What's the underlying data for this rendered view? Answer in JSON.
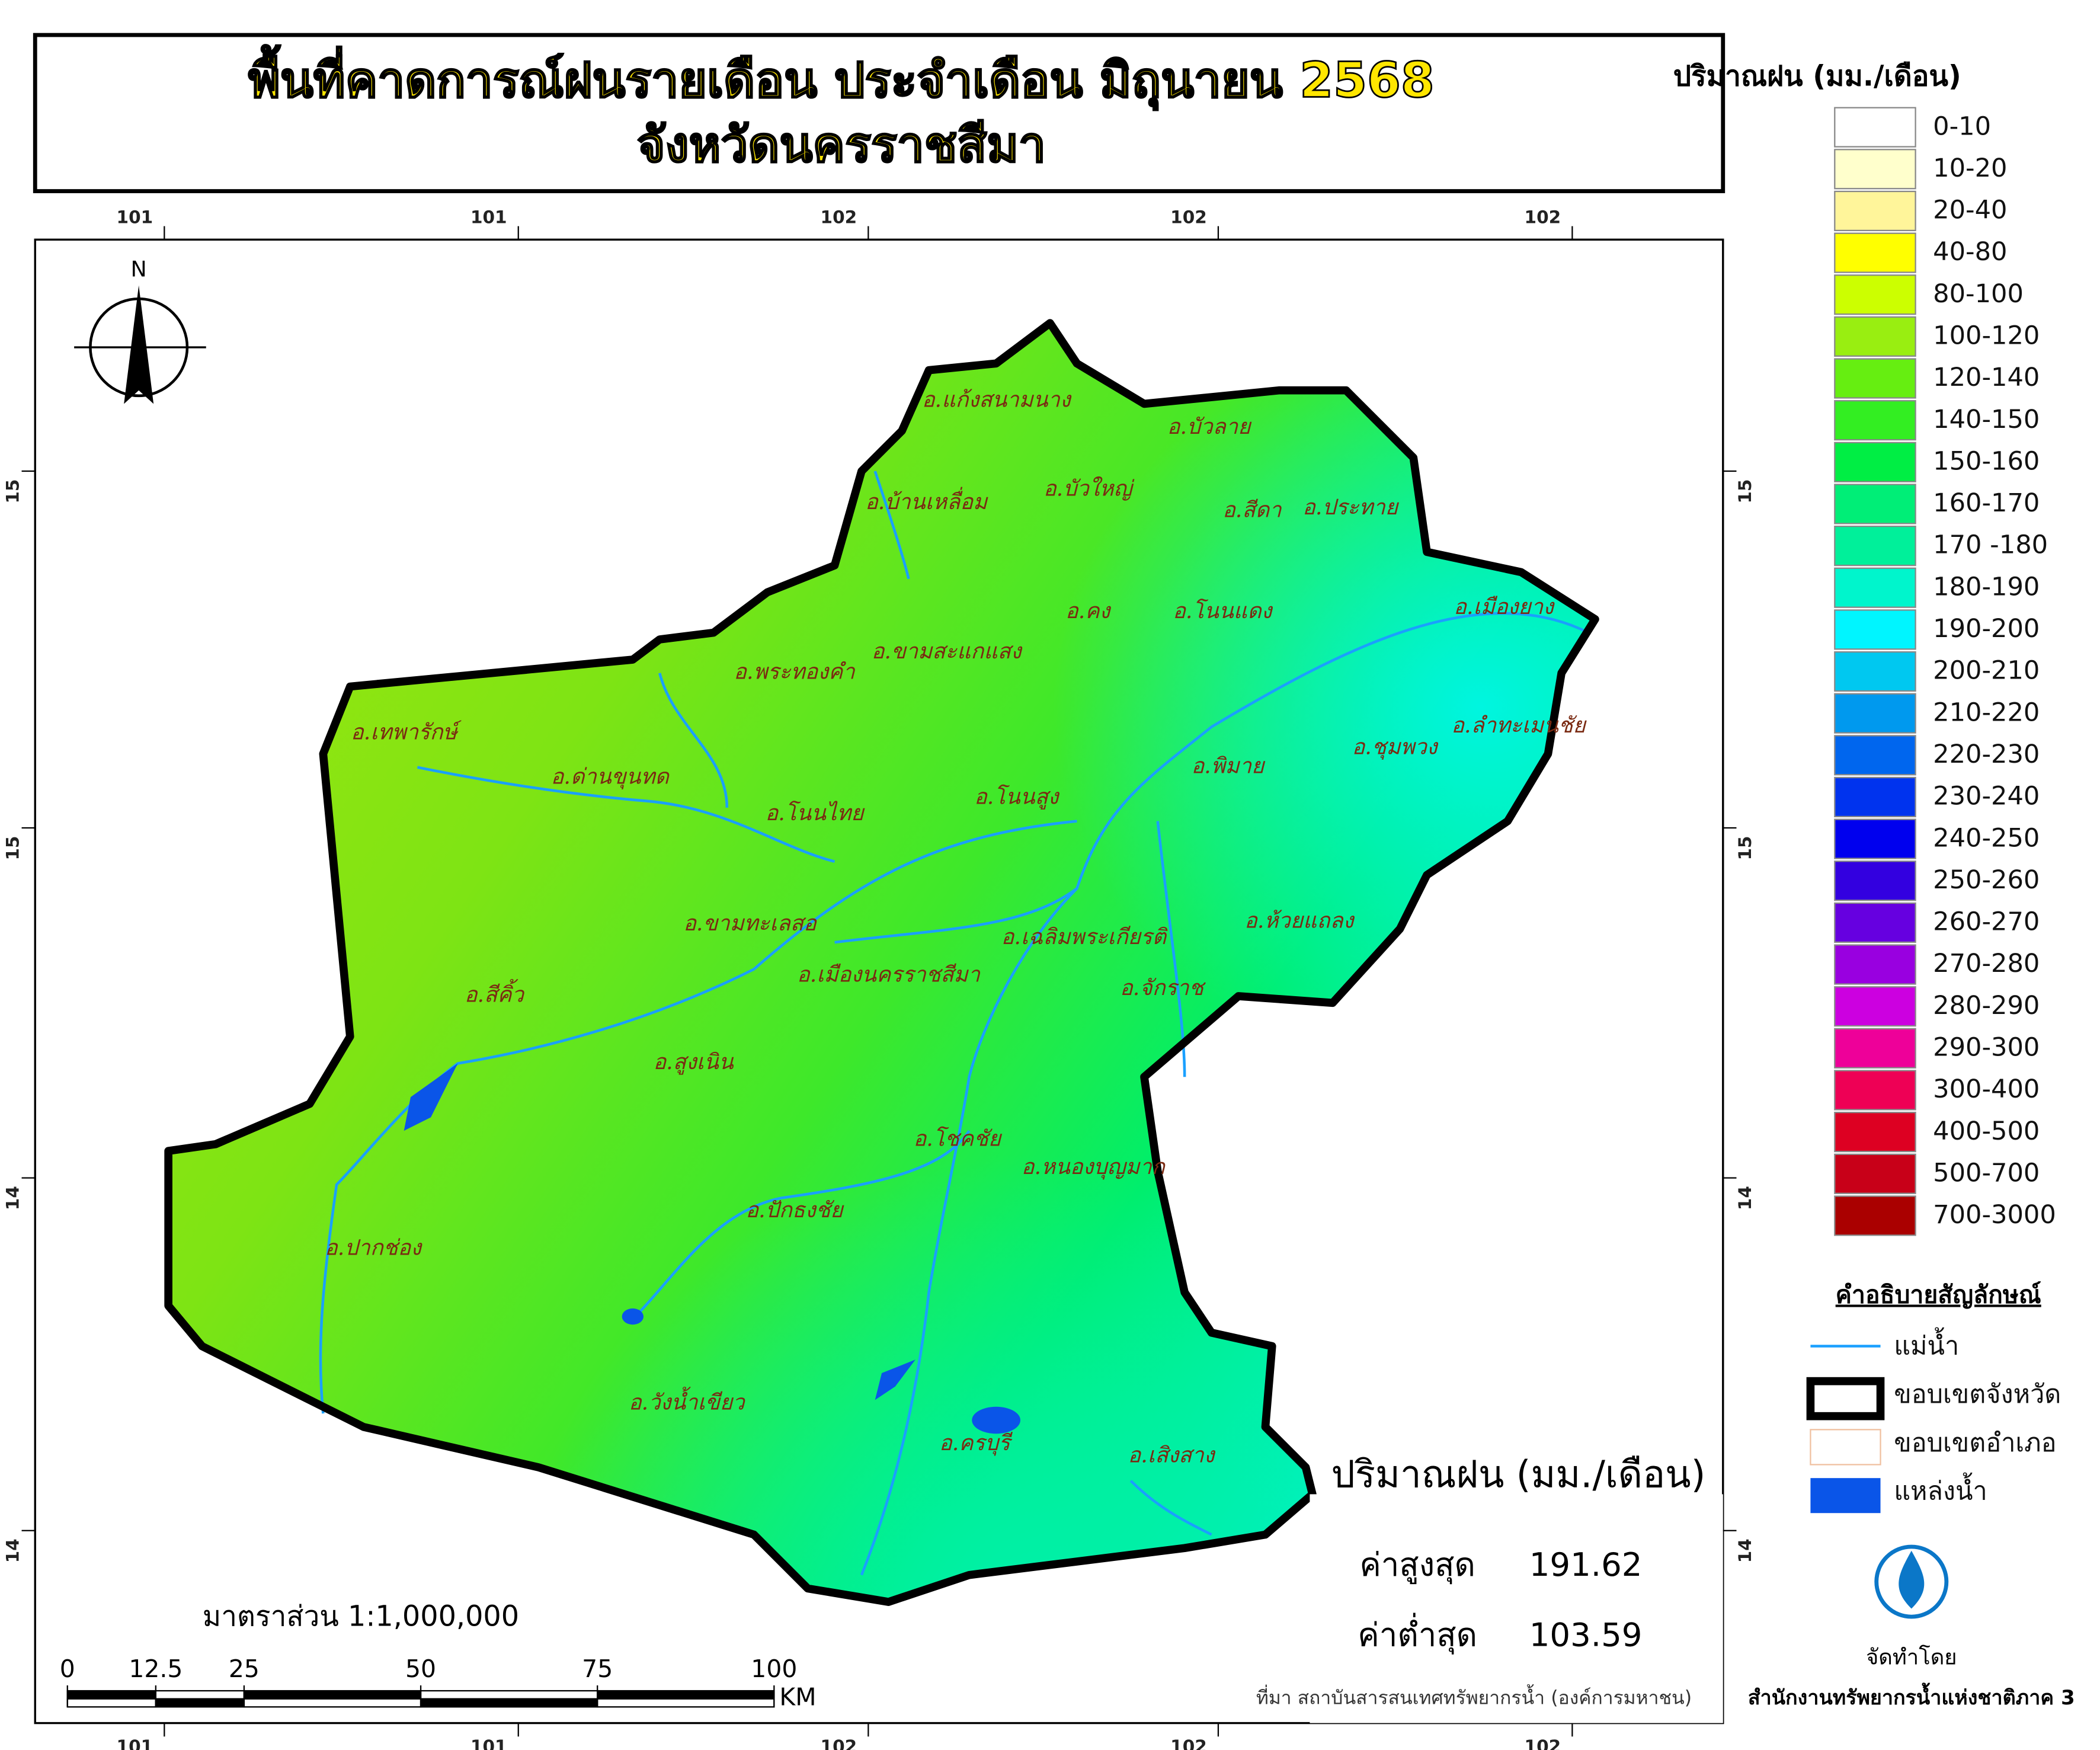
{
  "title": {
    "line1": "พื้นที่คาดการณ์ฝนรายเดือน ประจำเดือน มิถุนายน 2568",
    "line2": "จังหวัดนครราชสีมา"
  },
  "graticule": {
    "top": [
      101,
      101,
      102,
      102,
      102
    ],
    "bottom": [
      101,
      101,
      102,
      102,
      102
    ],
    "left": [
      15,
      15,
      14,
      14
    ],
    "right": [
      15,
      15,
      14,
      14
    ]
  },
  "north": "N",
  "districts": [
    "อ.แก้งสนามนาง",
    "อ.บัวลาย",
    "อ.บ้านเหลื่อม",
    "อ.บัวใหญ่",
    "อ.สีดา",
    "อ.ประทาย",
    "อ.คง",
    "อ.โนนแดง",
    "อ.เมืองยาง",
    "อ.ขามสะแกแสง",
    "อ.พระทองคำ",
    "อ.เทพารักษ์",
    "อ.ลำทะเมนชัย",
    "อ.ชุมพวง",
    "อ.ด่านขุนทด",
    "อ.พิมาย",
    "อ.โนนสูง",
    "อ.โนนไทย",
    "อ.ห้วยแถลง",
    "อ.ขามทะเลสอ",
    "อ.เฉลิมพระเกียรติ",
    "อ.เมืองนครราชสีมา",
    "อ.สีคิ้ว",
    "อ.จักราช",
    "อ.สูงเนิน",
    "อ.โชคชัย",
    "อ.หนองบุญมาก",
    "อ.ปักธงชัย",
    "อ.ปากช่อง",
    "อ.วังน้ำเขียว",
    "อ.ครบุรี",
    "อ.เสิงสาง"
  ],
  "legend": {
    "title": "ปริมาณฝน (มม./เดือน)",
    "classes": [
      {
        "label": "0-10",
        "color": "#ffffff"
      },
      {
        "label": "10-20",
        "color": "#ffffcc"
      },
      {
        "label": "20-40",
        "color": "#fff59a"
      },
      {
        "label": "40-80",
        "color": "#ffff00"
      },
      {
        "label": "80-100",
        "color": "#ccff00"
      },
      {
        "label": "100-120",
        "color": "#99ee11"
      },
      {
        "label": "120-140",
        "color": "#66ee11"
      },
      {
        "label": "140-150",
        "color": "#33ee22"
      },
      {
        "label": "150-160",
        "color": "#00ee44"
      },
      {
        "label": "160-170",
        "color": "#00ee77"
      },
      {
        "label": "170 -180",
        "color": "#00f09a"
      },
      {
        "label": "180-190",
        "color": "#00f5cc"
      },
      {
        "label": "190-200",
        "color": "#00f5ff"
      },
      {
        "label": "200-210",
        "color": "#00c8f0"
      },
      {
        "label": "210-220",
        "color": "#0099ee"
      },
      {
        "label": "220-230",
        "color": "#0066ee"
      },
      {
        "label": "230-240",
        "color": "#0033ee"
      },
      {
        "label": "240-250",
        "color": "#0000ee"
      },
      {
        "label": "250-260",
        "color": "#3300e0"
      },
      {
        "label": "260-270",
        "color": "#6600e0"
      },
      {
        "label": "270-280",
        "color": "#9900e0"
      },
      {
        "label": "280-290",
        "color": "#cc00e0"
      },
      {
        "label": "290-300",
        "color": "#ee0099"
      },
      {
        "label": "300-400",
        "color": "#ee0055"
      },
      {
        "label": "400-500",
        "color": "#dd0022"
      },
      {
        "label": "500-700",
        "color": "#c80018"
      },
      {
        "label": "700-3000",
        "color": "#aa0000"
      }
    ]
  },
  "symbols": {
    "title": "คำอธิบายสัญลักษณ์",
    "items": [
      "แม่น้ำ",
      "ขอบเขตจังหวัด",
      "ขอบเขตอำเภอ",
      "แหล่งน้ำ"
    ]
  },
  "stats": {
    "title": "ปริมาณฝน (มม./เดือน)",
    "max_label": "ค่าสูงสุด",
    "max": 191.62,
    "min_label": "ค่าต่ำสุด",
    "min": 103.59
  },
  "scale": {
    "text": "มาตราส่วน 1:1,000,000",
    "ticks": [
      0,
      12.5,
      25,
      50,
      75,
      100
    ],
    "unit": "KM"
  },
  "source": "ที่มา  สถาบันสารสนเทศทรัพยากรน้ำ (องค์การมหาชน)",
  "credit": {
    "by": "จัดทำโดย",
    "org": "สำนักงานทรัพยากรน้ำแห่งชาติภาค 3"
  }
}
